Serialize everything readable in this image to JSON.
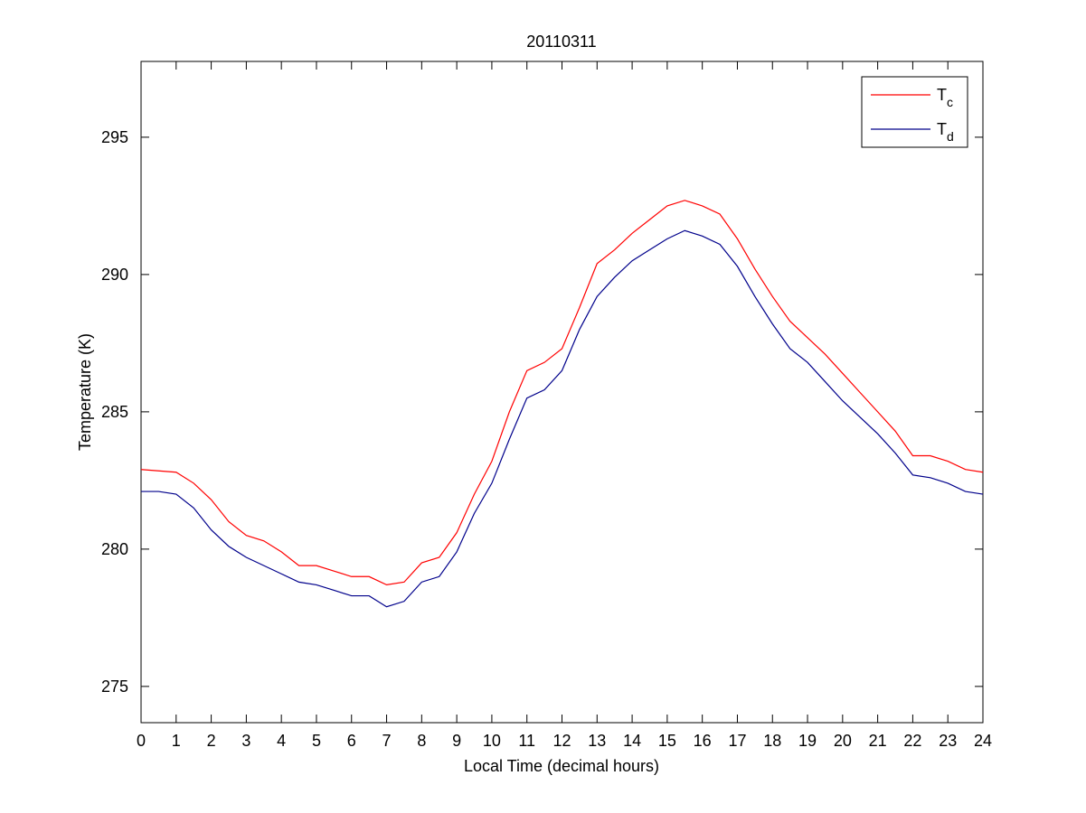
{
  "chart_data": {
    "type": "line",
    "title": "20110311",
    "x_label": "Local Time (decimal hours)",
    "y_label": "Temperature (K)",
    "x": [
      0,
      0.5,
      1,
      1.5,
      2,
      2.5,
      3,
      3.5,
      4,
      4.5,
      5,
      5.5,
      6,
      6.5,
      7,
      7.5,
      8,
      8.5,
      9,
      9.5,
      10,
      10.5,
      11,
      11.5,
      12,
      12.5,
      13,
      13.5,
      14,
      14.5,
      15,
      15.5,
      16,
      16.5,
      17,
      17.5,
      18,
      18.5,
      19,
      19.5,
      20,
      20.5,
      21,
      21.5,
      22,
      22.5,
      23,
      23.5,
      24
    ],
    "series": [
      {
        "name": "Tc",
        "color": "#ff0000",
        "values": [
          282.9,
          282.85,
          282.8,
          282.4,
          281.8,
          281.0,
          280.5,
          280.3,
          279.9,
          279.4,
          279.4,
          279.2,
          279.0,
          279.0,
          278.7,
          278.8,
          279.5,
          279.7,
          280.6,
          282.0,
          283.2,
          285.0,
          286.5,
          286.8,
          287.3,
          288.8,
          290.4,
          290.9,
          291.5,
          292.0,
          292.5,
          292.7,
          292.5,
          292.2,
          291.3,
          290.2,
          289.2,
          288.3,
          287.7,
          287.1,
          286.4,
          285.7,
          285.0,
          284.3,
          283.4,
          283.4,
          283.2,
          282.9,
          282.8
        ]
      },
      {
        "name": "Td",
        "color": "#00008b",
        "values": [
          282.1,
          282.1,
          282.0,
          281.5,
          280.7,
          280.1,
          279.7,
          279.4,
          279.1,
          278.8,
          278.7,
          278.5,
          278.3,
          278.3,
          277.9,
          278.1,
          278.8,
          279.0,
          279.9,
          281.3,
          282.4,
          284.0,
          285.5,
          285.8,
          286.5,
          288.0,
          289.2,
          289.9,
          290.5,
          290.9,
          291.3,
          291.6,
          291.4,
          291.1,
          290.3,
          289.2,
          288.2,
          287.3,
          286.8,
          286.1,
          285.4,
          284.8,
          284.2,
          283.5,
          282.7,
          282.6,
          282.4,
          282.1,
          282.0
        ]
      }
    ],
    "xlim": [
      0,
      24
    ],
    "xticks": [
      0,
      1,
      2,
      3,
      4,
      5,
      6,
      7,
      8,
      9,
      10,
      11,
      12,
      13,
      14,
      15,
      16,
      17,
      18,
      19,
      20,
      21,
      22,
      23,
      24
    ],
    "ylim": [
      273.68,
      297.76
    ],
    "yticks": [
      275,
      280,
      285,
      290,
      295
    ],
    "grid": false,
    "legend": "top-right"
  }
}
